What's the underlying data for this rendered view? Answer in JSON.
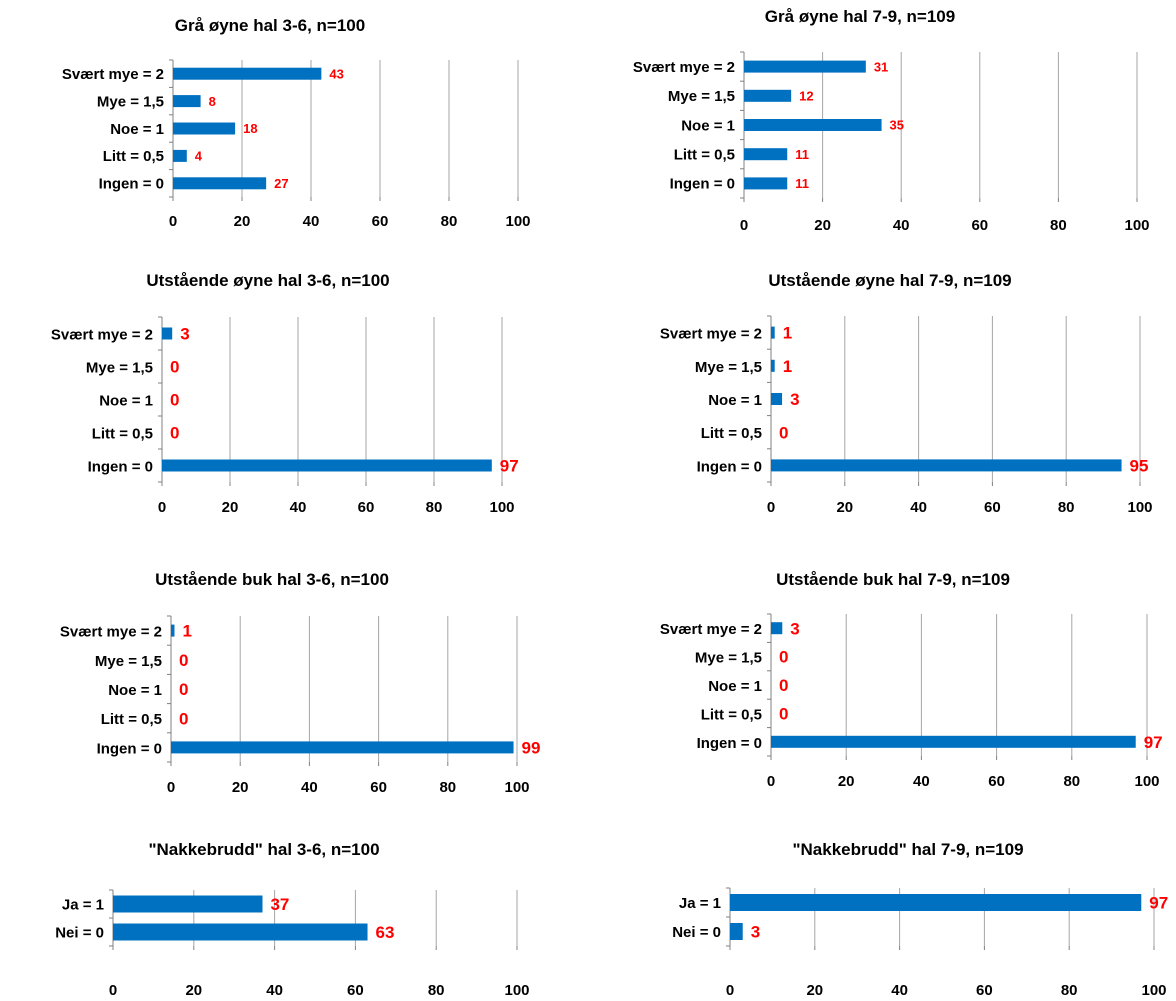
{
  "colors": {
    "bar": "#0070c0",
    "value_label": "#ff0000",
    "text": "#000000",
    "grid": "#a6a6a6"
  },
  "chart_data": [
    {
      "type": "bar",
      "orientation": "horizontal",
      "title": "Grå øyne hal 3-6, n=100",
      "categories": [
        "Svært  mye = 2",
        "Mye = 1,5",
        "Noe = 1",
        "Litt = 0,5",
        "Ingen = 0"
      ],
      "values": [
        43,
        8,
        18,
        4,
        27
      ],
      "xticks": [
        "0",
        "20",
        "40",
        "60",
        "80",
        "100"
      ],
      "xlim": [
        0,
        100
      ],
      "grid": true
    },
    {
      "type": "bar",
      "orientation": "horizontal",
      "title": "Grå øyne hal 7-9, n=109",
      "categories": [
        "Svært  mye = 2",
        "Mye = 1,5",
        "Noe = 1",
        "Litt = 0,5",
        "Ingen = 0"
      ],
      "values": [
        31,
        12,
        35,
        11,
        11
      ],
      "xticks": [
        "0",
        "20",
        "40",
        "60",
        "80",
        "100"
      ],
      "xlim": [
        0,
        100
      ],
      "grid": true
    },
    {
      "type": "bar",
      "orientation": "horizontal",
      "title": "Utstående øyne hal 3-6, n=100",
      "categories": [
        "Svært  mye = 2",
        "Mye = 1,5",
        "Noe = 1",
        "Litt = 0,5",
        "Ingen = 0"
      ],
      "values": [
        3,
        0,
        0,
        0,
        97
      ],
      "xticks": [
        "0",
        "20",
        "40",
        "60",
        "80",
        "100"
      ],
      "xlim": [
        0,
        100
      ],
      "grid": true
    },
    {
      "type": "bar",
      "orientation": "horizontal",
      "title": "Utstående øyne hal 7-9, n=109",
      "categories": [
        "Svært  mye = 2",
        "Mye = 1,5",
        "Noe = 1",
        "Litt = 0,5",
        "Ingen = 0"
      ],
      "values": [
        1,
        1,
        3,
        0,
        95
      ],
      "xticks": [
        "0",
        "20",
        "40",
        "60",
        "80",
        "100"
      ],
      "xlim": [
        0,
        100
      ],
      "grid": true
    },
    {
      "type": "bar",
      "orientation": "horizontal",
      "title": "Utstående buk hal 3-6, n=100",
      "categories": [
        "Svært  mye = 2",
        "Mye = 1,5",
        "Noe = 1",
        "Litt = 0,5",
        "Ingen = 0"
      ],
      "values": [
        1,
        0,
        0,
        0,
        99
      ],
      "xticks": [
        "0",
        "20",
        "40",
        "60",
        "80",
        "100"
      ],
      "xlim": [
        0,
        100
      ],
      "grid": true
    },
    {
      "type": "bar",
      "orientation": "horizontal",
      "title": "Utstående buk hal 7-9, n=109",
      "categories": [
        "Svært  mye = 2",
        "Mye = 1,5",
        "Noe = 1",
        "Litt = 0,5",
        "Ingen = 0"
      ],
      "values": [
        3,
        0,
        0,
        0,
        97
      ],
      "xticks": [
        "0",
        "20",
        "40",
        "60",
        "80",
        "100"
      ],
      "xlim": [
        0,
        100
      ],
      "grid": true
    },
    {
      "type": "bar",
      "orientation": "horizontal",
      "title": "\"Nakkebrudd\" hal 3-6, n=100",
      "categories": [
        "Ja = 1",
        "Nei = 0"
      ],
      "values": [
        37,
        63
      ],
      "xticks": [
        "0",
        "20",
        "40",
        "60",
        "80",
        "100"
      ],
      "xlim": [
        0,
        100
      ],
      "grid": true
    },
    {
      "type": "bar",
      "orientation": "horizontal",
      "title": "\"Nakkebrudd\" hal 7-9, n=109",
      "categories": [
        "Ja = 1",
        "Nei = 0"
      ],
      "values": [
        97,
        3
      ],
      "xticks": [
        "0",
        "20",
        "40",
        "60",
        "80",
        "100"
      ],
      "xlim": [
        0,
        100
      ],
      "grid": true
    }
  ]
}
